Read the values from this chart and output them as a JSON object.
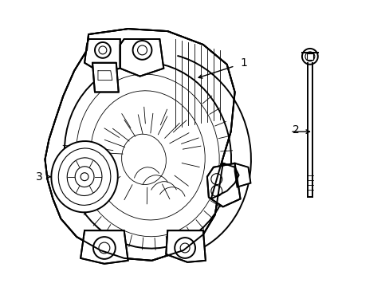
{
  "background_color": "#ffffff",
  "line_color": "#000000",
  "lw_main": 1.4,
  "lw_thin": 0.8,
  "lw_detail": 0.6,
  "label_1": "1",
  "label_2": "2",
  "label_3": "3",
  "label_fontsize": 10,
  "fig_width": 4.89,
  "fig_height": 3.6,
  "dpi": 100,
  "xlim": [
    0,
    489
  ],
  "ylim": [
    0,
    360
  ]
}
